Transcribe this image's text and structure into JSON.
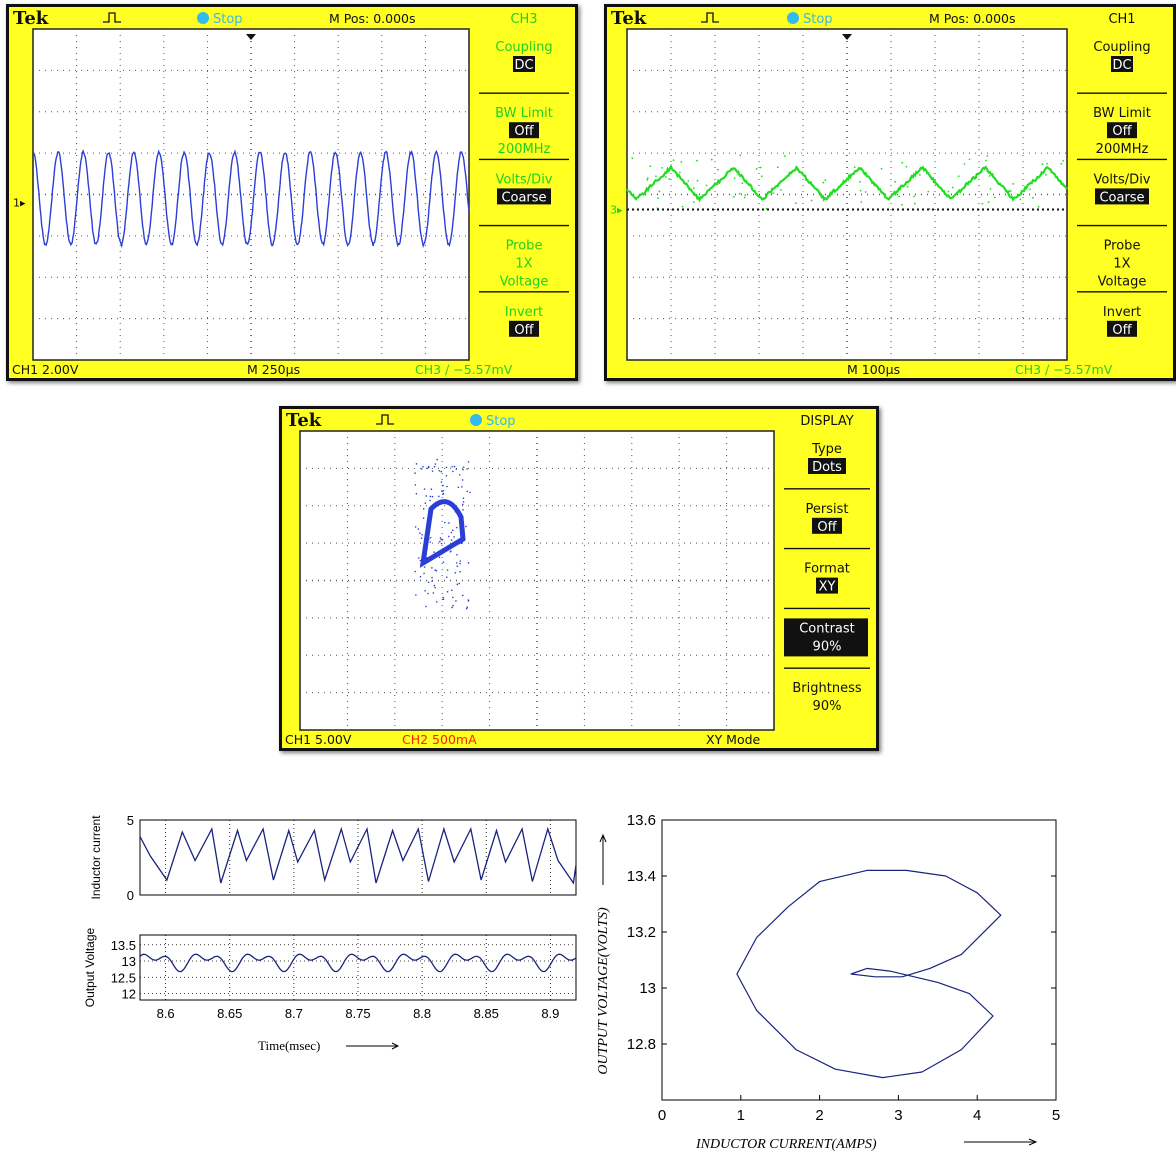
{
  "scope1": {
    "brand": "Tek",
    "state": "Stop",
    "mpos": "M Pos: 0.000s",
    "channel": "CH3",
    "menu": [
      {
        "label": "Coupling",
        "value": "DC",
        "inverted": true
      },
      {
        "label": "BW Limit",
        "value": "Off",
        "inverted": true,
        "extra": "200MHz"
      },
      {
        "label": "Volts/Div",
        "value": "Coarse",
        "inverted": true
      },
      {
        "label": "Probe",
        "value": "1X",
        "inverted": false,
        "extra": "Voltage"
      },
      {
        "label": "Invert",
        "value": "Off",
        "inverted": true
      }
    ],
    "bottom_left": "CH1  2.00V",
    "bottom_mid": "M 250µs",
    "bottom_right": "CH3  ∕  −5.57mV",
    "marker": "1",
    "colors": {
      "trace": "#2b3fd6",
      "menu_text": "#1fd11f"
    }
  },
  "scope2": {
    "brand": "Tek",
    "state": "Stop",
    "mpos": "M Pos: 0.000s",
    "channel": "CH1",
    "menu": [
      {
        "label": "Coupling",
        "value": "DC",
        "inverted": true
      },
      {
        "label": "BW Limit",
        "value": "Off",
        "inverted": true,
        "extra": "200MHz"
      },
      {
        "label": "Volts/Div",
        "value": "Coarse",
        "inverted": true
      },
      {
        "label": "Probe",
        "value": "1X",
        "inverted": false,
        "extra": "Voltage"
      },
      {
        "label": "Invert",
        "value": "Off",
        "inverted": true
      }
    ],
    "bottom_left": "",
    "bottom_mid": "M 100µs",
    "bottom_right": "CH3  ∕  −5.57mV",
    "marker": "3",
    "colors": {
      "trace": "#22dd22",
      "menu_text": "#111111"
    }
  },
  "scope3": {
    "brand": "Tek",
    "state": "Stop",
    "channel": "DISPLAY",
    "menu": [
      {
        "label": "Type",
        "value": "Dots",
        "inverted": true
      },
      {
        "label": "Persist",
        "value": "Off",
        "inverted": true
      },
      {
        "label": "Format",
        "value": "XY",
        "inverted": true
      },
      {
        "label": "Contrast",
        "value": "90%",
        "inverted": true,
        "block": true
      },
      {
        "label": "Brightness",
        "value": "90%",
        "inverted": false
      }
    ],
    "bottom_left": "CH1  5.00V",
    "bottom_mid": "CH2  500mA",
    "bottom_right": "XY Mode",
    "colors": {
      "trace": "#2b3fd6",
      "ch2": "#ff2200"
    }
  },
  "chart_data": [
    {
      "type": "line",
      "ylabel": "Inductor current",
      "ylim": [
        0,
        5
      ],
      "yticks": [
        0,
        5
      ],
      "xlim": [
        8.58,
        8.92
      ],
      "xticks": [
        8.6,
        8.65,
        8.7,
        8.75,
        8.8,
        8.85,
        8.9
      ],
      "x": [
        8.58,
        8.588,
        8.601,
        8.613,
        8.623,
        8.636,
        8.643,
        8.656,
        8.663,
        8.676,
        8.684,
        8.696,
        8.703,
        8.716,
        8.724,
        8.737,
        8.744,
        8.757,
        8.764,
        8.777,
        8.785,
        8.797,
        8.805,
        8.817,
        8.825,
        8.838,
        8.846,
        8.858,
        8.865,
        8.878,
        8.886,
        8.898,
        8.906,
        8.918,
        8.92
      ],
      "series": [
        {
          "values": [
            3.9,
            2.6,
            1.0,
            4.2,
            2.3,
            4.4,
            0.8,
            4.3,
            2.3,
            4.4,
            1.0,
            4.3,
            2.2,
            4.3,
            1.0,
            4.4,
            2.2,
            4.4,
            0.8,
            4.3,
            2.3,
            4.4,
            0.9,
            4.4,
            2.2,
            4.4,
            1.0,
            4.3,
            2.2,
            4.4,
            0.9,
            4.4,
            2.3,
            0.8,
            2.0
          ]
        }
      ],
      "grid": true
    },
    {
      "type": "line",
      "ylabel": "Output Voltage",
      "xlabel": "Time(msec)",
      "ylim": [
        11.8,
        13.8
      ],
      "yticks": [
        12,
        12.5,
        13,
        13.5
      ],
      "xlim": [
        8.58,
        8.92
      ],
      "xticks": [
        8.6,
        8.65,
        8.7,
        8.75,
        8.8,
        8.85,
        8.9
      ],
      "series": [
        {
          "values": "waveform"
        }
      ],
      "grid": true
    },
    {
      "type": "line",
      "xlabel": "INDUCTOR CURRENT(AMPS)",
      "ylabel": "OUTPUT VOLTAGE(VOLTS)",
      "xlim": [
        0,
        5
      ],
      "ylim": [
        12.6,
        13.6
      ],
      "xticks": [
        0,
        1,
        2,
        3,
        4,
        5
      ],
      "yticks": [
        12.8,
        13,
        13.2,
        13.4,
        13.6
      ],
      "x": [
        3.05,
        3.4,
        3.8,
        4.3,
        4.0,
        3.6,
        3.1,
        2.6,
        2.0,
        1.6,
        1.2,
        0.95,
        1.2,
        1.7,
        2.2,
        2.8,
        3.3,
        3.8,
        4.2,
        3.9,
        3.5,
        3.2,
        2.9,
        2.6,
        2.4,
        2.7,
        3.05
      ],
      "series": [
        {
          "values": [
            13.04,
            13.07,
            13.12,
            13.26,
            13.34,
            13.4,
            13.42,
            13.42,
            13.38,
            13.29,
            13.18,
            13.05,
            12.92,
            12.78,
            12.71,
            12.68,
            12.7,
            12.78,
            12.9,
            12.98,
            13.02,
            13.04,
            13.06,
            13.07,
            13.05,
            13.04,
            13.04
          ]
        }
      ],
      "grid": false
    }
  ]
}
